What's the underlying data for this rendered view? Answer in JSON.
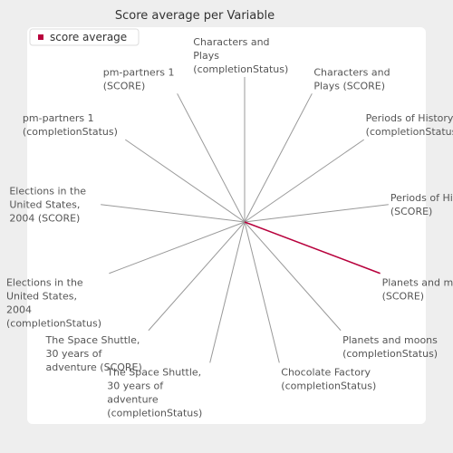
{
  "chart_data": {
    "type": "radar",
    "title": "Score average per Variable",
    "categories": [
      "Characters and Plays (completionStatus)",
      "Characters and Plays (SCORE)",
      "Periods of History (completionStatus)",
      "Periods of History (SCORE)",
      "Planets and moons (SCORE)",
      "Planets and moons (completionStatus)",
      "Chocolate Factory (completionStatus)",
      "The Space Shuttle, 30 years of adventure (completionStatus)",
      "The Space Shuttle, 30 years of adventure (SCORE)",
      "Elections in the United States, 2004 (completionStatus)",
      "Elections in the United States, 2004 (SCORE)",
      "pm-partners 1 (completionStatus)",
      "pm-partners 1 (SCORE)"
    ],
    "series": [
      {
        "name": "score average",
        "color": "#b8003c",
        "values": [
          0,
          0,
          0,
          0,
          100,
          0,
          0,
          0,
          0,
          0,
          0,
          0,
          0
        ]
      }
    ],
    "ylim": [
      0,
      100
    ],
    "legend": "top-left"
  }
}
